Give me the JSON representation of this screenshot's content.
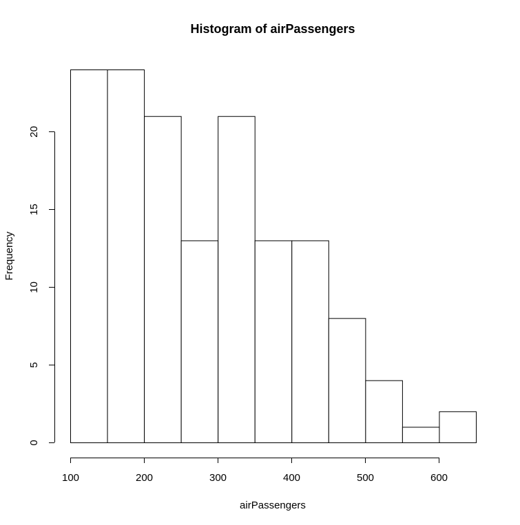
{
  "chart_data": {
    "type": "bar",
    "title": "Histogram of airPassengers",
    "xlabel": "airPassengers",
    "ylabel": "Frequency",
    "bin_edges": [
      100,
      150,
      200,
      250,
      300,
      350,
      400,
      450,
      500,
      550,
      600,
      650
    ],
    "values": [
      24,
      24,
      21,
      13,
      21,
      13,
      13,
      8,
      4,
      1,
      2
    ],
    "xlim": [
      100,
      650
    ],
    "ylim": [
      0,
      24
    ],
    "x_ticks": [
      100,
      200,
      300,
      400,
      500,
      600
    ],
    "y_ticks": [
      0,
      5,
      10,
      15,
      20
    ],
    "bar_fill": "#ffffff",
    "bar_stroke": "#000000",
    "grid": false
  }
}
